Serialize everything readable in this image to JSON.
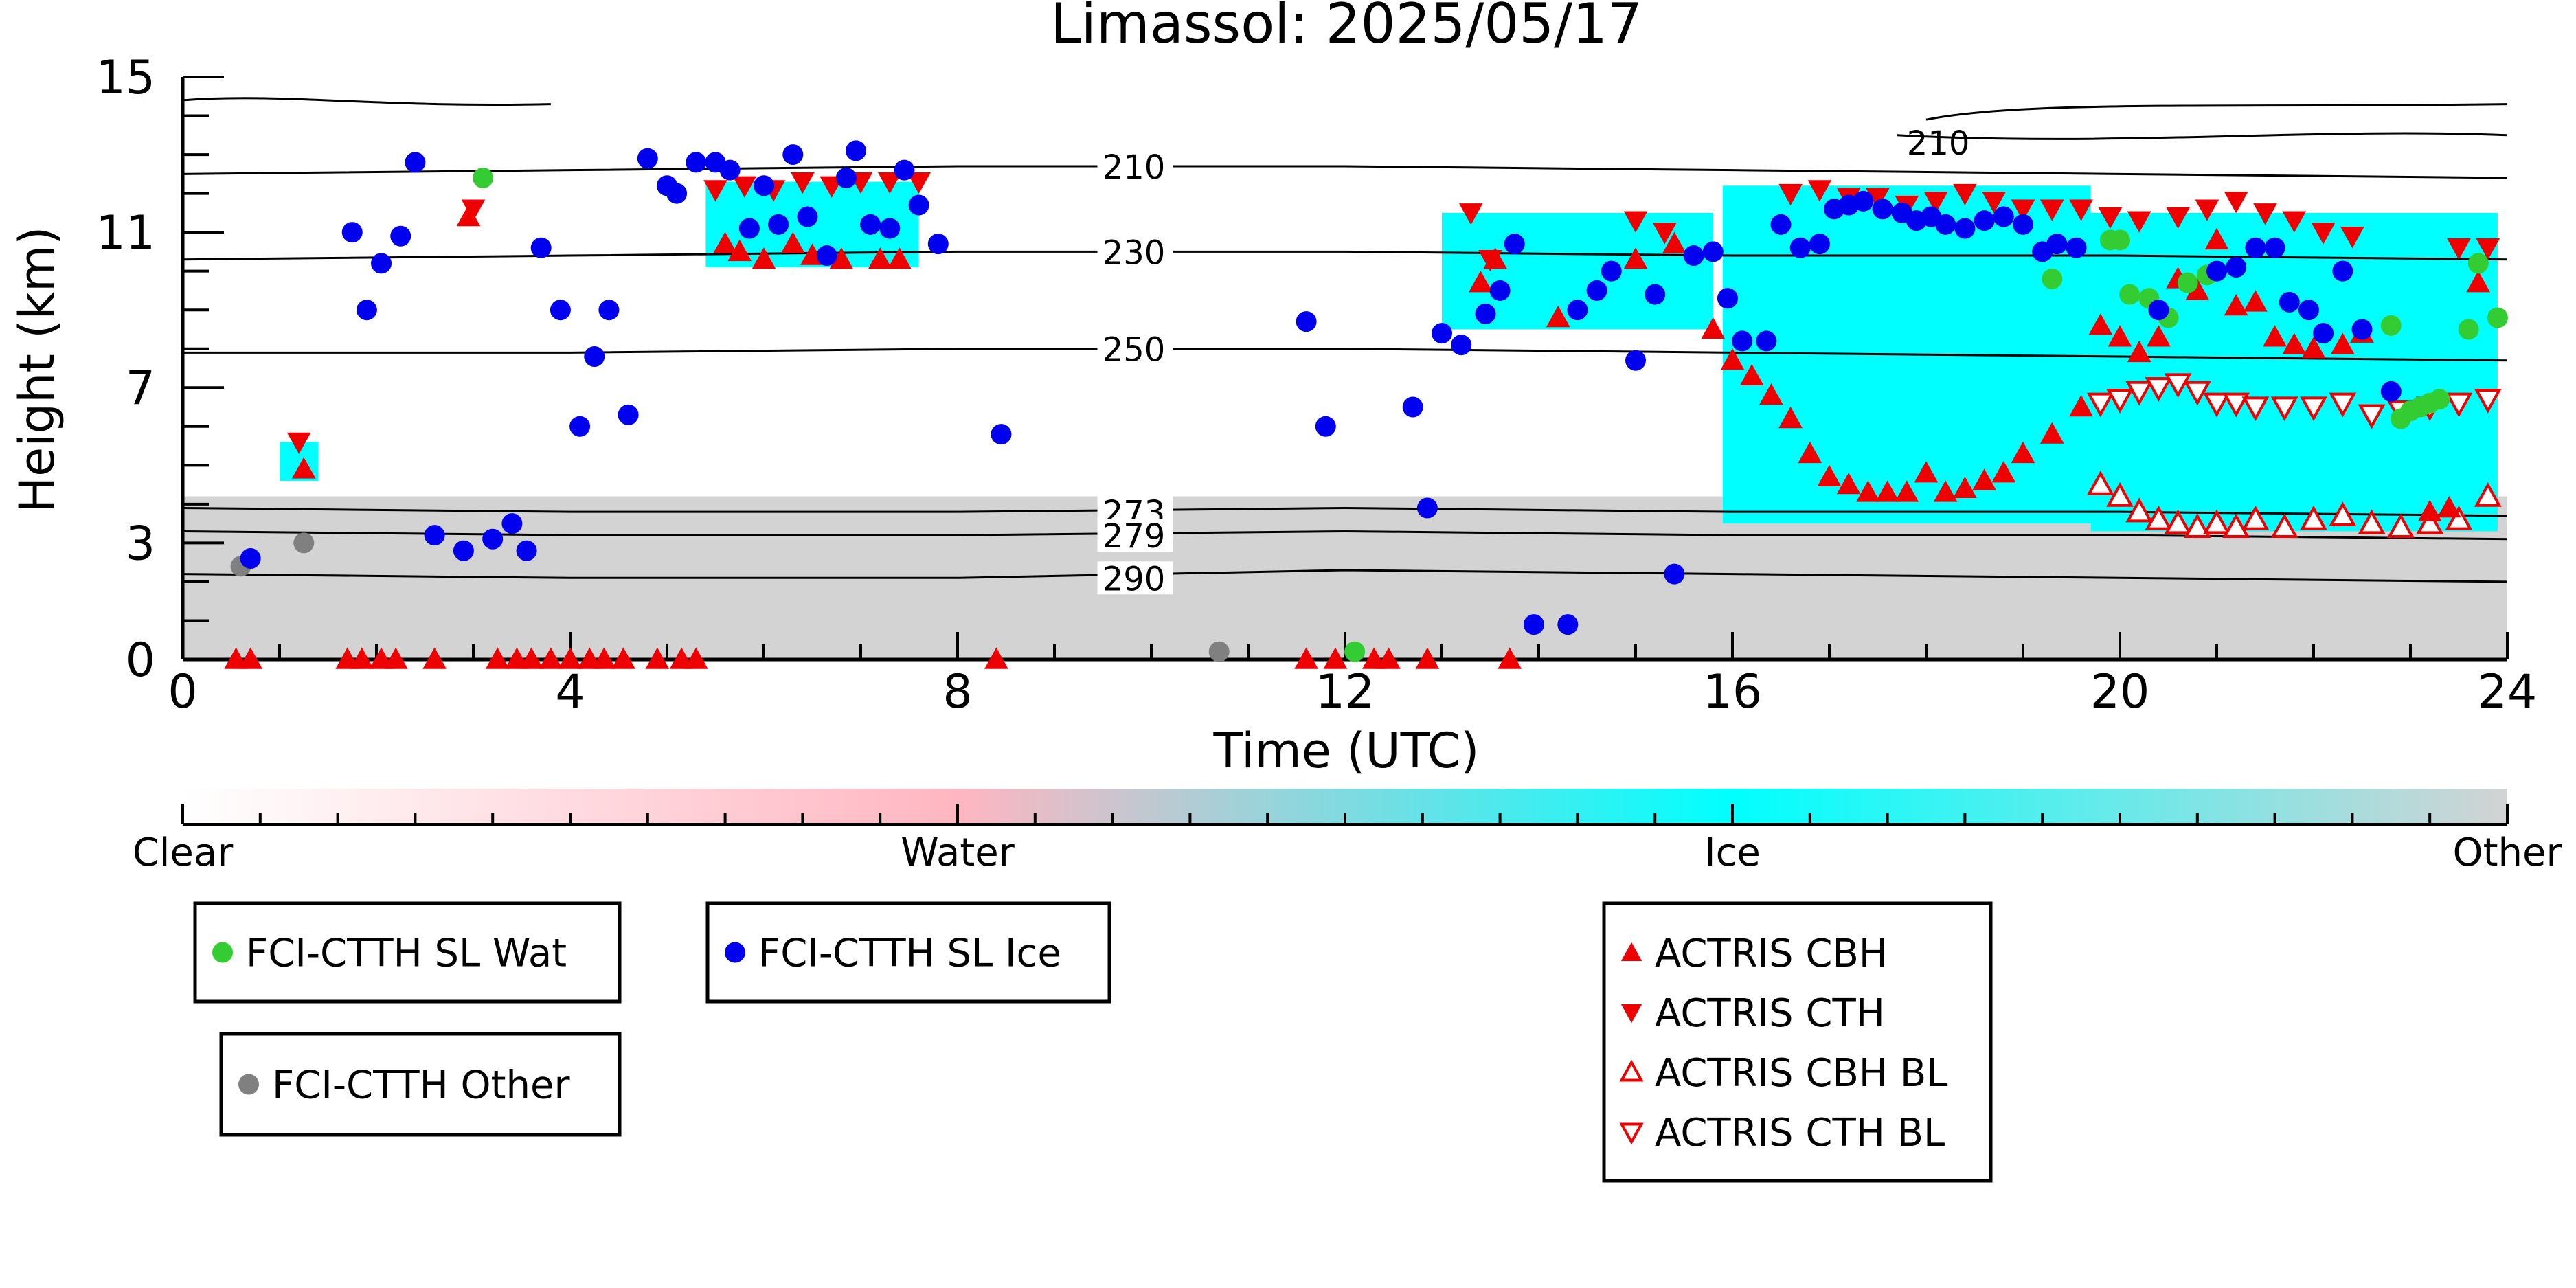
{
  "chart_data": {
    "type": "scatter",
    "title": "Limassol: 2025/05/17",
    "xlabel": "Time (UTC)",
    "ylabel": "Height (km)",
    "xlim": [
      0,
      24
    ],
    "ylim": [
      0,
      15
    ],
    "x_ticks": [
      0,
      4,
      8,
      12,
      16,
      20,
      24
    ],
    "x_tick_labels": [
      "0",
      "4",
      "8",
      "12",
      "16",
      "20",
      "24"
    ],
    "y_ticks": [
      0,
      3,
      7,
      11,
      15
    ],
    "y_tick_labels": [
      "0",
      "3",
      "7",
      "11",
      "15"
    ],
    "grid": false,
    "background_classification": {
      "colorbar_labels": [
        "Clear",
        "Water",
        "Ice",
        "Other"
      ],
      "colors": {
        "Clear": "#ffffff",
        "Water": "#ffb6c1",
        "Ice": "#00ffff",
        "Other": "#d3d3d3"
      },
      "ice_regions": [
        {
          "x": [
            5.4,
            7.6
          ],
          "bottom": 10.1,
          "top": 12.3
        },
        {
          "x": [
            15.9,
            19.7
          ],
          "bottom": 3.5,
          "top": 12.2
        },
        {
          "x": [
            19.7,
            23.9
          ],
          "bottom": 3.3,
          "top": 11.5
        },
        {
          "x": [
            13.0,
            15.8
          ],
          "bottom": 8.5,
          "top": 11.5
        },
        {
          "x": [
            1.0,
            1.4
          ],
          "bottom": 4.6,
          "top": 5.6
        }
      ],
      "other_layer_top_km": 4.2
    },
    "isotherms": [
      {
        "label": "210",
        "x": [
          0,
          4,
          8,
          12,
          16,
          20,
          24
        ],
        "y": [
          12.5,
          12.6,
          12.7,
          12.7,
          12.6,
          12.5,
          12.4
        ]
      },
      {
        "label": "230",
        "x": [
          0,
          4,
          8,
          12,
          16,
          20,
          24
        ],
        "y": [
          10.3,
          10.4,
          10.5,
          10.5,
          10.4,
          10.4,
          10.3
        ]
      },
      {
        "label": "250",
        "x": [
          0,
          4,
          8,
          12,
          16,
          20,
          24
        ],
        "y": [
          7.9,
          7.9,
          8.0,
          8.0,
          7.9,
          7.8,
          7.7
        ]
      },
      {
        "label": "273",
        "x": [
          0,
          4,
          8,
          12,
          16,
          20,
          24
        ],
        "y": [
          3.9,
          3.8,
          3.8,
          3.9,
          3.8,
          3.8,
          3.7
        ]
      },
      {
        "label": "279",
        "x": [
          0,
          4,
          8,
          12,
          16,
          20,
          24
        ],
        "y": [
          3.3,
          3.2,
          3.2,
          3.3,
          3.2,
          3.2,
          3.1
        ]
      },
      {
        "label": "290",
        "x": [
          0,
          4,
          8,
          12,
          16,
          20,
          24
        ],
        "y": [
          2.2,
          2.1,
          2.1,
          2.3,
          2.2,
          2.1,
          2.0
        ]
      }
    ],
    "upper_contour_label": "210",
    "series": [
      {
        "name": "FCI-CTTH SL Wat",
        "marker": "circle",
        "color": "#33cc33",
        "x": [
          3.1,
          12.1,
          19.3,
          19.9,
          20.0,
          20.1,
          20.3,
          20.5,
          20.7,
          20.9,
          21.0,
          22.8,
          22.9,
          23.0,
          23.1,
          23.2,
          23.3,
          23.6,
          23.7,
          23.9
        ],
        "y": [
          12.4,
          0.2,
          9.8,
          10.8,
          10.8,
          9.4,
          9.3,
          8.8,
          9.7,
          9.9,
          10.0,
          8.6,
          6.2,
          6.4,
          6.5,
          6.6,
          6.7,
          8.5,
          10.2,
          8.8
        ]
      },
      {
        "name": "FCI-CTTH SL Ice",
        "marker": "circle",
        "color": "#0000ee",
        "x": [
          0.7,
          1.75,
          1.9,
          2.05,
          2.25,
          2.4,
          2.6,
          2.9,
          3.2,
          3.4,
          3.55,
          3.7,
          3.9,
          4.1,
          4.25,
          4.4,
          4.6,
          4.8,
          5.0,
          5.1,
          5.3,
          5.5,
          5.65,
          5.85,
          6.0,
          6.15,
          6.3,
          6.45,
          6.65,
          6.85,
          6.95,
          7.1,
          7.3,
          7.45,
          7.6,
          7.8,
          8.45,
          11.6,
          11.8,
          12.7,
          12.85,
          13.0,
          13.2,
          13.45,
          13.6,
          13.75,
          13.95,
          14.3,
          14.4,
          14.6,
          14.75,
          15.0,
          15.2,
          15.4,
          15.6,
          15.8,
          15.95,
          16.1,
          16.35,
          16.5,
          16.7,
          16.9,
          17.05,
          17.2,
          17.35,
          17.55,
          17.75,
          17.9,
          18.05,
          18.2,
          18.4,
          18.6,
          18.8,
          19.0,
          19.2,
          19.35,
          19.55,
          20.4,
          21.0,
          21.2,
          21.4,
          21.6,
          21.75,
          21.95,
          22.1,
          22.3,
          22.5,
          22.8
        ],
        "y": [
          2.6,
          11.0,
          9.0,
          10.2,
          10.9,
          12.8,
          3.2,
          2.8,
          3.1,
          3.5,
          2.8,
          10.6,
          9.0,
          6.0,
          7.8,
          9.0,
          6.3,
          12.9,
          12.2,
          12.0,
          12.8,
          12.8,
          12.6,
          11.1,
          12.2,
          11.2,
          13.0,
          11.4,
          10.4,
          12.4,
          13.1,
          11.2,
          11.1,
          12.6,
          11.7,
          10.7,
          5.8,
          8.7,
          6.0,
          6.5,
          3.9,
          8.4,
          8.1,
          8.9,
          9.5,
          10.7,
          0.9,
          0.9,
          9.0,
          9.5,
          10.0,
          7.7,
          9.4,
          2.2,
          10.4,
          10.5,
          9.3,
          8.2,
          8.2,
          11.2,
          10.6,
          10.7,
          11.6,
          11.7,
          11.8,
          11.6,
          11.5,
          11.3,
          11.4,
          11.2,
          11.1,
          11.3,
          11.4,
          11.2,
          10.5,
          10.7,
          10.6,
          9.0,
          10.0,
          10.1,
          10.6,
          10.6,
          9.2,
          9.0,
          8.4,
          10.0,
          8.5,
          6.9
        ]
      },
      {
        "name": "FCI-CTTH Other",
        "marker": "circle",
        "color": "#808080",
        "x": [
          0.6,
          1.25,
          10.7
        ],
        "y": [
          2.4,
          3.0,
          0.2
        ]
      },
      {
        "name": "ACTRIS CBH",
        "marker": "triangle-up",
        "color": "#ee0000",
        "filled": true,
        "x": [
          0.55,
          0.7,
          1.25,
          1.7,
          1.85,
          2.05,
          2.2,
          2.6,
          2.95,
          3.25,
          3.45,
          3.6,
          3.8,
          4.0,
          4.2,
          4.35,
          4.55,
          4.9,
          5.15,
          5.3,
          5.6,
          5.75,
          6.0,
          6.3,
          6.5,
          6.8,
          7.2,
          7.4,
          8.4,
          11.6,
          11.9,
          12.3,
          12.45,
          12.85,
          13.4,
          13.55,
          13.7,
          14.2,
          15.0,
          15.4,
          15.8,
          16.0,
          16.2,
          16.4,
          16.6,
          16.8,
          17.0,
          17.2,
          17.4,
          17.6,
          17.8,
          18.0,
          18.2,
          18.4,
          18.6,
          18.8,
          19.0,
          19.3,
          19.6,
          19.8,
          20.0,
          20.2,
          20.4,
          20.6,
          20.8,
          21.0,
          21.2,
          21.4,
          21.6,
          21.8,
          22.0,
          22.3,
          22.5,
          23.2,
          23.4,
          23.7
        ],
        "y": [
          0.0,
          0.0,
          4.9,
          0.0,
          0.0,
          0.0,
          0.0,
          0.0,
          11.4,
          0.0,
          0.0,
          0.0,
          0.0,
          0.0,
          0.0,
          0.0,
          0.0,
          0.0,
          0.0,
          0.0,
          10.7,
          10.5,
          10.3,
          10.7,
          10.4,
          10.3,
          10.3,
          10.3,
          0.0,
          0.0,
          0.0,
          0.0,
          0.0,
          0.0,
          9.7,
          10.3,
          0.0,
          8.8,
          10.3,
          10.7,
          8.5,
          7.7,
          7.3,
          6.8,
          6.2,
          5.3,
          4.7,
          4.5,
          4.3,
          4.3,
          4.3,
          4.8,
          4.3,
          4.4,
          4.6,
          4.8,
          5.3,
          5.8,
          6.5,
          8.6,
          8.3,
          7.9,
          8.3,
          9.8,
          9.5,
          10.8,
          9.1,
          9.2,
          8.3,
          8.1,
          8.0,
          8.1,
          8.4,
          3.8,
          3.9,
          9.7
        ],
        "note_zero": "Triangles at 0 km indicate ground-level detections"
      },
      {
        "name": "ACTRIS CTH",
        "marker": "triangle-down",
        "color": "#ee0000",
        "filled": true,
        "x": [
          1.2,
          3.0,
          5.5,
          5.8,
          6.1,
          6.4,
          6.7,
          7.0,
          7.3,
          7.6,
          13.3,
          13.5,
          15.0,
          15.3,
          16.6,
          16.9,
          17.2,
          17.5,
          17.8,
          18.1,
          18.4,
          18.7,
          19.0,
          19.3,
          19.6,
          19.9,
          20.2,
          20.6,
          20.9,
          21.2,
          21.5,
          21.8,
          22.1,
          22.4,
          23.5,
          23.8
        ],
        "y": [
          5.6,
          11.6,
          12.1,
          12.2,
          12.1,
          12.3,
          12.2,
          12.3,
          12.3,
          12.3,
          11.5,
          10.3,
          11.3,
          11.0,
          12.0,
          12.1,
          11.9,
          11.9,
          11.7,
          11.8,
          12.0,
          11.8,
          11.6,
          11.6,
          11.6,
          11.4,
          11.3,
          11.4,
          11.6,
          11.8,
          11.5,
          11.3,
          11.0,
          10.9,
          10.6,
          10.6
        ]
      },
      {
        "name": "ACTRIS CBH BL",
        "marker": "triangle-up-open",
        "color": "#ee0000",
        "x": [
          19.8,
          20.0,
          20.2,
          20.4,
          20.6,
          20.8,
          21.0,
          21.2,
          21.4,
          21.7,
          22.0,
          22.3,
          22.6,
          22.9,
          23.2,
          23.5,
          23.8
        ],
        "y": [
          4.5,
          4.2,
          3.8,
          3.6,
          3.5,
          3.4,
          3.5,
          3.4,
          3.6,
          3.4,
          3.6,
          3.7,
          3.5,
          3.4,
          3.5,
          3.6,
          4.2
        ]
      },
      {
        "name": "ACTRIS CTH BL",
        "marker": "triangle-down-open",
        "color": "#ee0000",
        "x": [
          19.8,
          20.0,
          20.2,
          20.4,
          20.6,
          20.8,
          21.0,
          21.2,
          21.4,
          21.7,
          22.0,
          22.3,
          22.6,
          22.9,
          23.2,
          23.5,
          23.8
        ],
        "y": [
          6.6,
          6.7,
          6.9,
          7.0,
          7.1,
          6.9,
          6.6,
          6.6,
          6.5,
          6.5,
          6.5,
          6.6,
          6.3,
          6.4,
          6.5,
          6.6,
          6.7
        ]
      }
    ],
    "legend": [
      {
        "group": 1,
        "items": [
          "FCI-CTTH SL Wat"
        ]
      },
      {
        "group": 2,
        "items": [
          "FCI-CTTH SL Ice"
        ]
      },
      {
        "group": 3,
        "items": [
          "FCI-CTTH Other"
        ]
      },
      {
        "group": 4,
        "items": [
          "ACTRIS CBH",
          "ACTRIS CTH",
          "ACTRIS CBH BL",
          "ACTRIS CTH BL"
        ]
      }
    ],
    "legend_placement": "below"
  }
}
